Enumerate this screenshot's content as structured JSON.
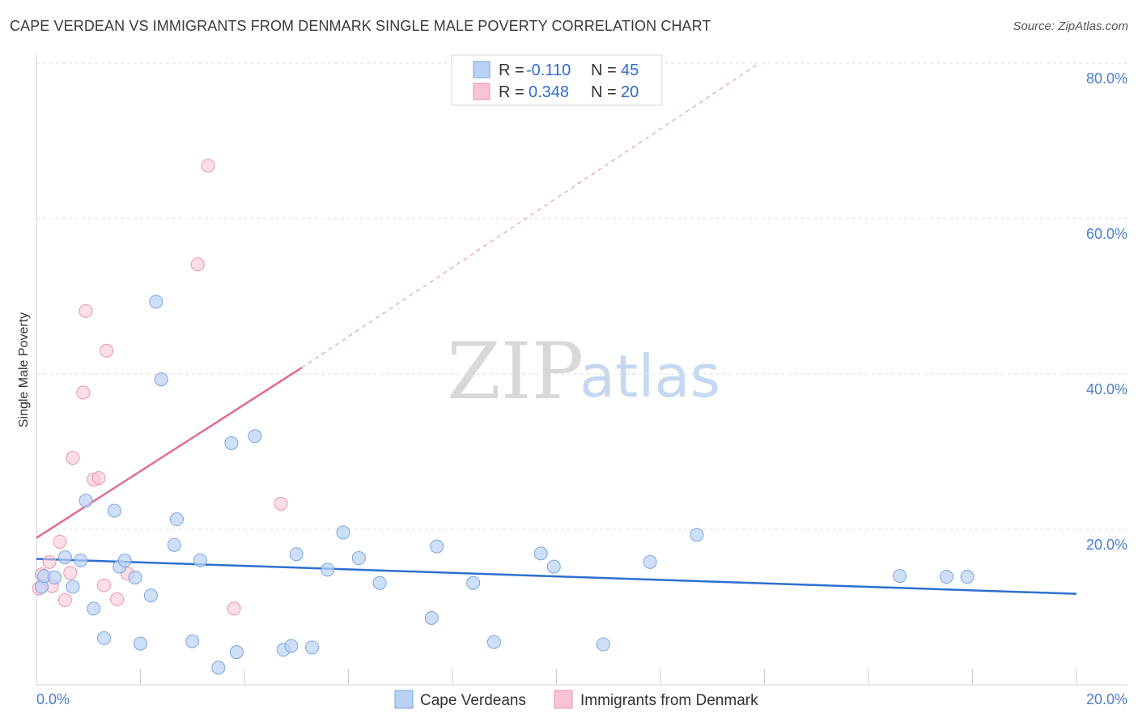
{
  "header": {
    "title": "CAPE VERDEAN VS IMMIGRANTS FROM DENMARK SINGLE MALE POVERTY CORRELATION CHART",
    "source": "Source: ZipAtlas.com"
  },
  "watermark": {
    "zip": "ZIP",
    "atlas": "atlas"
  },
  "legend": {
    "rows": [
      {
        "r_label": "R =",
        "r_value": "-0.110",
        "n_label": "N =",
        "n_value": "45"
      },
      {
        "r_label": "R =",
        "r_value": "0.348",
        "n_label": "N =",
        "n_value": "20"
      }
    ]
  },
  "bottom_legend": {
    "series1": "Cape Verdeans",
    "series2": "Immigrants from Denmark"
  },
  "colors": {
    "blue_fill": "#b9d1f3",
    "blue_stroke": "#7aa5e0",
    "blue_line": "#2d6fd0",
    "pink_fill": "#f8c3d3",
    "pink_stroke": "#eb93ae",
    "pink_line": "#e06a93"
  },
  "chart_data": {
    "type": "scatter",
    "title": "CAPE VERDEAN VS IMMIGRANTS FROM DENMARK SINGLE MALE POVERTY CORRELATION CHART",
    "xlabel": "",
    "ylabel": "Single Male Poverty",
    "xlim": [
      0,
      20
    ],
    "ylim": [
      0,
      80
    ],
    "x_tick_labels": [
      "0.0%",
      "20.0%"
    ],
    "y_ticks": [
      20,
      40,
      60,
      80
    ],
    "y_tick_labels": [
      "20.0%",
      "40.0%",
      "60.0%",
      "80.0%"
    ],
    "grid": true,
    "series": [
      {
        "name": "Cape Verdeans",
        "color": "#b9d1f3",
        "R": -0.11,
        "N": 45,
        "trend": {
          "x": [
            0,
            20
          ],
          "y": [
            16.2,
            11.7
          ]
        },
        "points": [
          [
            0.1,
            12.6
          ],
          [
            0.15,
            14.0
          ],
          [
            0.35,
            13.8
          ],
          [
            0.55,
            16.4
          ],
          [
            0.7,
            12.6
          ],
          [
            0.85,
            16.0
          ],
          [
            0.95,
            23.7
          ],
          [
            1.1,
            9.8
          ],
          [
            1.3,
            6.0
          ],
          [
            1.5,
            22.4
          ],
          [
            1.6,
            15.2
          ],
          [
            1.7,
            16.0
          ],
          [
            1.9,
            13.8
          ],
          [
            2.0,
            5.3
          ],
          [
            2.2,
            11.5
          ],
          [
            2.3,
            49.3
          ],
          [
            2.4,
            39.3
          ],
          [
            2.65,
            18.0
          ],
          [
            2.7,
            21.3
          ],
          [
            3.0,
            5.6
          ],
          [
            3.15,
            16.0
          ],
          [
            3.5,
            2.2
          ],
          [
            3.75,
            31.1
          ],
          [
            3.85,
            4.2
          ],
          [
            4.2,
            32.0
          ],
          [
            4.75,
            4.5
          ],
          [
            4.9,
            5.0
          ],
          [
            5.0,
            16.8
          ],
          [
            5.3,
            4.8
          ],
          [
            5.6,
            14.8
          ],
          [
            5.9,
            19.6
          ],
          [
            6.2,
            16.3
          ],
          [
            6.6,
            13.1
          ],
          [
            7.6,
            8.6
          ],
          [
            7.7,
            17.8
          ],
          [
            8.4,
            13.1
          ],
          [
            8.8,
            5.5
          ],
          [
            9.7,
            16.9
          ],
          [
            9.95,
            15.2
          ],
          [
            10.9,
            5.2
          ],
          [
            11.8,
            15.8
          ],
          [
            12.7,
            19.3
          ],
          [
            16.6,
            14.0
          ],
          [
            17.5,
            13.9
          ],
          [
            17.9,
            13.9
          ]
        ]
      },
      {
        "name": "Immigrants from Denmark",
        "color": "#f8c3d3",
        "R": 0.348,
        "N": 20,
        "trend": {
          "x": [
            0,
            5.1
          ],
          "y": [
            18.9,
            40.8
          ],
          "dashed_to": {
            "x": 13.9,
            "y": 80
          }
        },
        "points": [
          [
            0.05,
            12.4
          ],
          [
            0.3,
            12.7
          ],
          [
            0.25,
            15.8
          ],
          [
            0.45,
            18.4
          ],
          [
            0.55,
            10.9
          ],
          [
            0.65,
            14.4
          ],
          [
            0.7,
            29.2
          ],
          [
            0.9,
            37.6
          ],
          [
            0.95,
            48.1
          ],
          [
            1.1,
            26.4
          ],
          [
            1.2,
            26.6
          ],
          [
            1.3,
            12.8
          ],
          [
            1.35,
            43.0
          ],
          [
            1.55,
            11.0
          ],
          [
            1.75,
            14.3
          ],
          [
            3.1,
            54.1
          ],
          [
            3.3,
            66.8
          ],
          [
            3.8,
            9.8
          ],
          [
            4.7,
            23.3
          ],
          [
            0.1,
            14.2
          ]
        ]
      }
    ]
  }
}
